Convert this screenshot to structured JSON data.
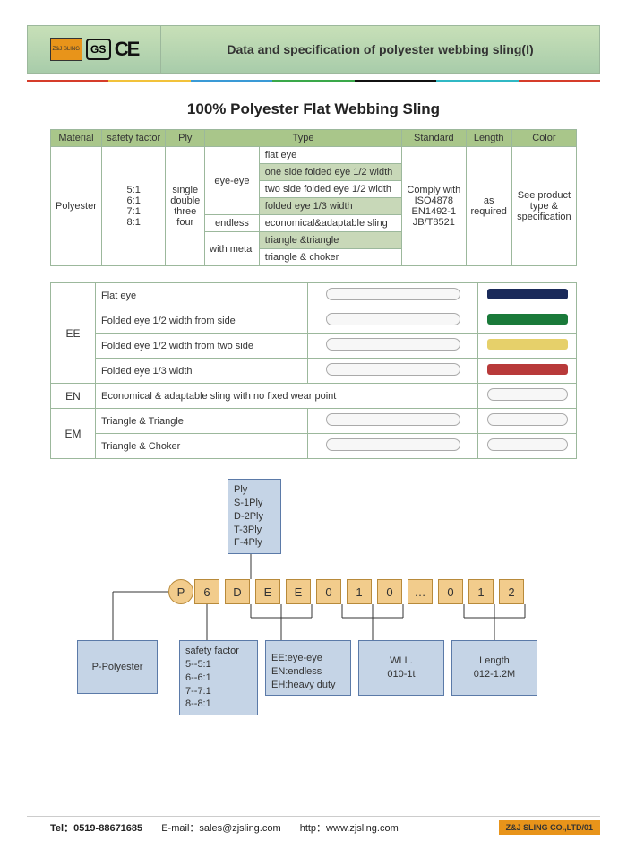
{
  "header": {
    "logo_label": "Z&J SLING",
    "gs": "GS",
    "ce": "CE",
    "title": "Data and specification of polyester webbing sling(I)"
  },
  "stripe_colors": [
    "#d63c2a",
    "#f2c23a",
    "#3a9ad6",
    "#3aa84a",
    "#111111",
    "#30b8c4",
    "#d63c2a"
  ],
  "main_title": "100% Polyester Flat Webbing Sling",
  "spec_headers": [
    "Material",
    "safety factor",
    "Ply",
    "Type",
    "Standard",
    "Length",
    "Color"
  ],
  "spec": {
    "material": "Polyester",
    "safety_factor": "5:1\n6:1\n7:1\n8:1",
    "ply": "single\ndouble\nthree\nfour",
    "type_groups": [
      {
        "label": "eye-eye",
        "rows": [
          "flat eye",
          "one side folded eye 1/2 width",
          "two side folded eye 1/2 width",
          "folded eye 1/3 width"
        ],
        "alt": [
          false,
          true,
          false,
          true
        ]
      },
      {
        "label": "endless",
        "rows": [
          "economical&adaptable sling"
        ],
        "alt": [
          false
        ]
      },
      {
        "label": "with metal",
        "rows": [
          "triangle &triangle",
          "triangle & choker"
        ],
        "alt": [
          true,
          false
        ]
      }
    ],
    "standard": "Comply with\nISO4878\nEN1492-1\nJB/T8521",
    "length": "as\nrequired",
    "color": "See product\ntype &\nspecification"
  },
  "type_rows": [
    {
      "code": "EE",
      "label": "Flat eye",
      "pic_color": "#1a2a5a",
      "rowspan": 4
    },
    {
      "code": "",
      "label": "Folded eye 1/2 width from side",
      "pic_color": "#1a7a3a"
    },
    {
      "code": "",
      "label": "Folded eye 1/2 width from two side",
      "pic_color": "#e6d06a"
    },
    {
      "code": "",
      "label": "Folded eye 1/3 width",
      "pic_color": "#b83a3a"
    },
    {
      "code": "EN",
      "label": "Economical & adaptable sling with no fixed wear point",
      "pic_color": "",
      "rowspan": 1,
      "span": true
    },
    {
      "code": "EM",
      "label": "Triangle & Triangle",
      "pic_color": "",
      "rowspan": 2
    },
    {
      "code": "",
      "label": "Triangle & Choker",
      "pic_color": ""
    }
  ],
  "diagram": {
    "ply_box": "Ply\nS-1Ply\nD-2Ply\nT-3Ply\nF-4Ply",
    "cells": [
      "6",
      "D",
      "E",
      "E",
      "0",
      "1",
      "0",
      "…",
      "0",
      "1",
      "2"
    ],
    "p_label": "P",
    "p_box": "P-Polyester",
    "sf_box": "safety factor\n5--5:1\n6--6:1\n7--7:1\n8--8:1",
    "ee_box": "EE:eye-eye\nEN:endless\nEH:heavy duty",
    "wll_box": "WLL.\n010-1t",
    "len_box": "Length\n012-1.2M"
  },
  "footer": {
    "tel": "Tel：0519-88671685",
    "email": "E-mail：sales@zjsling.com",
    "http": "http：www.zjsling.com",
    "tag": "Z&J SLING CO.,LTD/01"
  }
}
